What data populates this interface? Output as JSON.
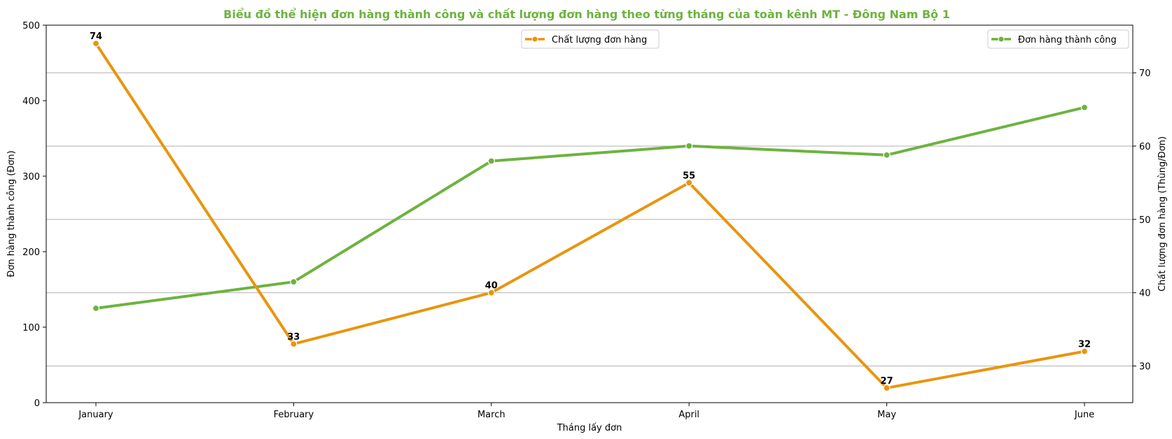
{
  "chart_data": {
    "type": "line",
    "title": "Biểu đồ thể hiện đơn hàng thành công và chất lượng đơn hàng theo từng tháng của toàn kênh MT - Đông Nam Bộ 1",
    "title_color": "#6db33f",
    "xlabel": "Tháng lấy đơn",
    "ylabel_left": "Đơn hàng thành công (Đơn)",
    "ylabel_right": "Chất lượng đơn hàng (Thùng/Đơn)",
    "categories": [
      "January",
      "February",
      "March",
      "April",
      "May",
      "June"
    ],
    "y_left": {
      "min": 0,
      "max": 500,
      "ticks": [
        0,
        100,
        200,
        300,
        400,
        500
      ]
    },
    "y_right": {
      "min": 25,
      "max": 76.5,
      "ticks": [
        30,
        40,
        50,
        60,
        70
      ]
    },
    "grid": "horizontal, right axis",
    "series": [
      {
        "name": "Đơn hàng thành công",
        "axis": "left",
        "color": "#6db33f",
        "values": [
          125,
          160,
          320,
          340,
          328,
          391
        ],
        "legend_position": "top-right"
      },
      {
        "name": "Chất lượng đơn hàng",
        "axis": "right",
        "color": "#e8950f",
        "values": [
          74,
          33,
          40,
          55,
          27,
          32
        ],
        "data_labels": [
          "74",
          "33",
          "40",
          "55",
          "27",
          "32"
        ],
        "legend_position": "top-center"
      }
    ]
  }
}
